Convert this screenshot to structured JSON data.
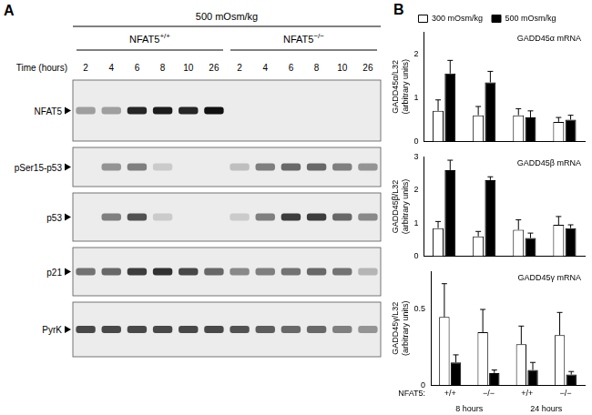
{
  "panel_letters": [
    "A",
    "B"
  ],
  "blot": {
    "condition": "500 mOsm/kg",
    "genotypes": [
      {
        "name": "NFAT5",
        "superscript": "+/+"
      },
      {
        "name": "NFAT5",
        "superscript": "−/−"
      }
    ],
    "time_label": "Time (hours)",
    "lanes": [
      "2",
      "4",
      "6",
      "8",
      "10",
      "26",
      "2",
      "4",
      "6",
      "8",
      "10",
      "26"
    ],
    "rows": [
      {
        "label": "NFAT5",
        "band_intensity": [
          0.35,
          0.35,
          0.9,
          0.95,
          0.9,
          1,
          0,
          0,
          0,
          0,
          0,
          0
        ]
      },
      {
        "label": "pSer15-p53",
        "band_intensity": [
          0,
          0.4,
          0.5,
          0.15,
          0,
          0,
          0.2,
          0.5,
          0.6,
          0.6,
          0.5,
          0.4
        ]
      },
      {
        "label": "p53",
        "band_intensity": [
          0,
          0.5,
          0.7,
          0.15,
          0,
          0,
          0.15,
          0.5,
          0.8,
          0.8,
          0.6,
          0.45
        ]
      },
      {
        "label": "p21",
        "band_intensity": [
          0.55,
          0.6,
          0.8,
          0.85,
          0.75,
          0.6,
          0.45,
          0.5,
          0.55,
          0.6,
          0.55,
          0.25
        ]
      },
      {
        "label": "PyrK",
        "band_intensity": [
          0.75,
          0.75,
          0.75,
          0.75,
          0.75,
          0.75,
          0.7,
          0.65,
          0.6,
          0.6,
          0.5,
          0.4
        ]
      }
    ]
  },
  "chart_data": [
    {
      "type": "bar",
      "title": "GADD45α mRNA",
      "y_label": [
        "GADD45α/L32",
        "(arbitrary units)"
      ],
      "categories": [
        "+/+",
        "−/−",
        "+/+",
        "−/−"
      ],
      "series": [
        {
          "name": "300 mOsm/kg",
          "color": "#ffffff",
          "values": [
            0.7,
            0.6,
            0.6,
            0.45
          ],
          "errors": [
            0.25,
            0.2,
            0.15,
            0.1
          ]
        },
        {
          "name": "500 mOsm/kg",
          "color": "#000000",
          "values": [
            1.55,
            1.35,
            0.55,
            0.5
          ],
          "errors": [
            0.3,
            0.25,
            0.15,
            0.1
          ]
        }
      ],
      "ylim": [
        0,
        2.5
      ],
      "yticks": [
        0,
        1,
        2
      ],
      "grid": false,
      "legend": "top",
      "tick_labels": "y"
    },
    {
      "type": "bar",
      "title": "GADD45β mRNA",
      "y_label": [
        "GADD45β/L32",
        "(arbitrary units)"
      ],
      "categories": [
        "+/+",
        "−/−",
        "+/+",
        "−/−"
      ],
      "series": [
        {
          "name": "300 mOsm/kg",
          "color": "#ffffff",
          "values": [
            0.85,
            0.6,
            0.8,
            0.95
          ],
          "errors": [
            0.2,
            0.15,
            0.3,
            0.25
          ]
        },
        {
          "name": "500 mOsm/kg",
          "color": "#000000",
          "values": [
            2.6,
            2.3,
            0.55,
            0.85
          ],
          "errors": [
            0.3,
            0.1,
            0.15,
            0.1
          ]
        }
      ],
      "ylim": [
        0,
        3
      ],
      "yticks": [
        0,
        1,
        2,
        3
      ],
      "grid": false,
      "tick_labels": "y"
    },
    {
      "type": "bar",
      "title": "GADD45γ mRNA",
      "y_label": [
        "GADD45γ/L32",
        "(arbitrary units)"
      ],
      "categories": [
        "+/+",
        "−/−",
        "+/+",
        "−/−"
      ],
      "x_row_label": "NFAT5:",
      "x_groups": [
        {
          "label": "8 hours",
          "span": [
            0,
            1
          ]
        },
        {
          "label": "24 hours",
          "span": [
            2,
            3
          ]
        }
      ],
      "series": [
        {
          "name": "300 mOsm/kg",
          "color": "#ffffff",
          "values": [
            0.45,
            0.35,
            0.27,
            0.33
          ],
          "errors": [
            0.22,
            0.15,
            0.12,
            0.15
          ]
        },
        {
          "name": "500 mOsm/kg",
          "color": "#000000",
          "values": [
            0.15,
            0.08,
            0.1,
            0.07
          ],
          "errors": [
            0.05,
            0.02,
            0.05,
            0.02
          ]
        }
      ],
      "ylim": [
        0,
        0.75
      ],
      "yticks": [
        0,
        0.5
      ],
      "grid": false
    }
  ]
}
